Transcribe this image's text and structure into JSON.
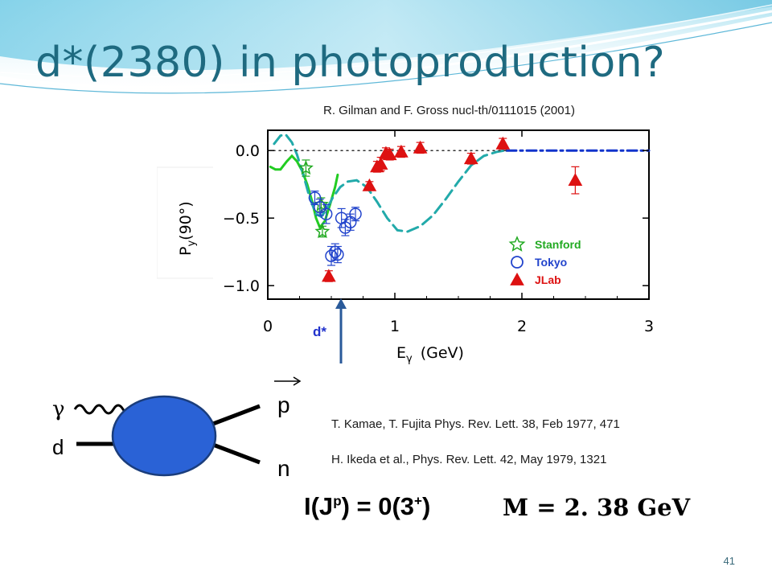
{
  "slide": {
    "title": "d*(2380) in photoproduction?",
    "ref_gilman": "R. Gilman and F. Gross nucl-th/0111015 (2001)",
    "ref_kamae": "T. Kamae, T. Fujita Phys. Rev. Lett. 38, Feb 1977, 471",
    "ref_ikeda": "H. Ikeda et al., Phys. Rev. Lett. 42, May 1979, 1321",
    "quantum": {
      "prefix": "I(J",
      "sup": "p",
      "suffix": ") = 0(3",
      "sup2": "+",
      "end": ")"
    },
    "mass": "M = 2. 38 GeV",
    "page_number": "41",
    "accent_color": "#1e6a80"
  },
  "diagram": {
    "gamma_label": "γ",
    "d_label": "d",
    "p_label": "p",
    "n_label": "n",
    "blob_color": "#2a62d6"
  },
  "chart_data": {
    "type": "scatter",
    "xlabel_main": "E",
    "xlabel_sub": "γ",
    "xlabel_unit": "(GeV)",
    "ylabel_main": "P",
    "ylabel_sub": "y",
    "ylabel_arg": "(90°)",
    "xlim": [
      0,
      3
    ],
    "ylim": [
      -1.1,
      0.15
    ],
    "x_ticks": [
      0,
      1,
      2,
      3
    ],
    "x_tick_labels": [
      "0",
      "1",
      "2",
      "3"
    ],
    "y_ticks": [
      0.0,
      -0.5,
      -1.0
    ],
    "y_tick_labels": [
      "0.0",
      "−0.5",
      "−1.0"
    ],
    "marker_label": "d*",
    "marker_x": 0.56,
    "legend": [
      {
        "name": "Stanford",
        "marker": "star",
        "color": "#22aa22"
      },
      {
        "name": "Tokyo",
        "marker": "circle",
        "color": "#2244cc"
      },
      {
        "name": "JLab",
        "marker": "triangle",
        "color": "#dd1111"
      }
    ],
    "series": [
      {
        "name": "Stanford",
        "marker": "star",
        "color": "#22aa22",
        "points": [
          {
            "x": 0.3,
            "y": -0.13,
            "err": 0.06
          },
          {
            "x": 0.42,
            "y": -0.4,
            "err": 0.05
          },
          {
            "x": 0.43,
            "y": -0.6,
            "err": 0.04
          }
        ]
      },
      {
        "name": "Tokyo",
        "marker": "circle",
        "color": "#2244cc",
        "points": [
          {
            "x": 0.37,
            "y": -0.35,
            "err": 0.05
          },
          {
            "x": 0.41,
            "y": -0.42,
            "err": 0.06
          },
          {
            "x": 0.46,
            "y": -0.47,
            "err": 0.07
          },
          {
            "x": 0.5,
            "y": -0.78,
            "err": 0.07
          },
          {
            "x": 0.53,
            "y": -0.75,
            "err": 0.06
          },
          {
            "x": 0.55,
            "y": -0.77,
            "err": 0.06
          },
          {
            "x": 0.58,
            "y": -0.5,
            "err": 0.07
          },
          {
            "x": 0.61,
            "y": -0.57,
            "err": 0.06
          },
          {
            "x": 0.65,
            "y": -0.53,
            "err": 0.06
          },
          {
            "x": 0.69,
            "y": -0.47,
            "err": 0.05
          }
        ]
      },
      {
        "name": "JLab",
        "marker": "triangle",
        "color": "#dd1111",
        "points": [
          {
            "x": 0.48,
            "y": -0.93,
            "err": 0.04
          },
          {
            "x": 0.8,
            "y": -0.26,
            "err": 0.03
          },
          {
            "x": 0.86,
            "y": -0.12,
            "err": 0.04
          },
          {
            "x": 0.89,
            "y": -0.1,
            "err": 0.05
          },
          {
            "x": 0.93,
            "y": -0.02,
            "err": 0.04
          },
          {
            "x": 0.96,
            "y": -0.03,
            "err": 0.04
          },
          {
            "x": 1.05,
            "y": -0.01,
            "err": 0.04
          },
          {
            "x": 1.2,
            "y": 0.02,
            "err": 0.04
          },
          {
            "x": 1.6,
            "y": -0.06,
            "err": 0.04
          },
          {
            "x": 1.85,
            "y": 0.05,
            "err": 0.04
          },
          {
            "x": 2.42,
            "y": -0.22,
            "err": 0.1
          }
        ]
      }
    ],
    "curves": [
      {
        "name": "green-solid",
        "color": "#22cc22",
        "dash": "none",
        "points": [
          [
            0.02,
            -0.12
          ],
          [
            0.06,
            -0.14
          ],
          [
            0.1,
            -0.14
          ],
          [
            0.15,
            -0.08
          ],
          [
            0.19,
            -0.04
          ],
          [
            0.23,
            -0.08
          ],
          [
            0.27,
            -0.15
          ],
          [
            0.31,
            -0.25
          ],
          [
            0.35,
            -0.38
          ],
          [
            0.38,
            -0.5
          ],
          [
            0.41,
            -0.57
          ],
          [
            0.45,
            -0.52
          ],
          [
            0.49,
            -0.4
          ],
          [
            0.53,
            -0.27
          ],
          [
            0.55,
            -0.18
          ]
        ]
      },
      {
        "name": "cyan-dashed",
        "color": "#22aaaa",
        "dash": "14 7",
        "points": [
          [
            0.05,
            0.05
          ],
          [
            0.1,
            0.11
          ],
          [
            0.14,
            0.12
          ],
          [
            0.19,
            0.06
          ],
          [
            0.23,
            -0.03
          ],
          [
            0.28,
            -0.18
          ],
          [
            0.33,
            -0.35
          ],
          [
            0.38,
            -0.47
          ],
          [
            0.42,
            -0.49
          ],
          [
            0.46,
            -0.44
          ],
          [
            0.51,
            -0.35
          ],
          [
            0.57,
            -0.27
          ],
          [
            0.63,
            -0.23
          ],
          [
            0.7,
            -0.22
          ],
          [
            0.78,
            -0.27
          ],
          [
            0.86,
            -0.38
          ],
          [
            0.94,
            -0.5
          ],
          [
            1.02,
            -0.59
          ],
          [
            1.1,
            -0.6
          ],
          [
            1.2,
            -0.56
          ],
          [
            1.3,
            -0.48
          ],
          [
            1.4,
            -0.36
          ],
          [
            1.5,
            -0.23
          ],
          [
            1.6,
            -0.11
          ],
          [
            1.7,
            -0.04
          ],
          [
            1.8,
            -0.01
          ],
          [
            1.86,
            0.0
          ]
        ]
      },
      {
        "name": "blue-dashdot",
        "color": "#1133cc",
        "dash": "12 5 3 5",
        "points": [
          [
            1.88,
            0.0
          ],
          [
            2.2,
            0.0
          ],
          [
            2.6,
            0.0
          ],
          [
            3.0,
            0.0
          ]
        ]
      },
      {
        "name": "zero-dotted",
        "color": "#333333",
        "dash": "2 5",
        "points": [
          [
            0.0,
            0.0
          ],
          [
            1.88,
            0.0
          ]
        ]
      }
    ]
  }
}
